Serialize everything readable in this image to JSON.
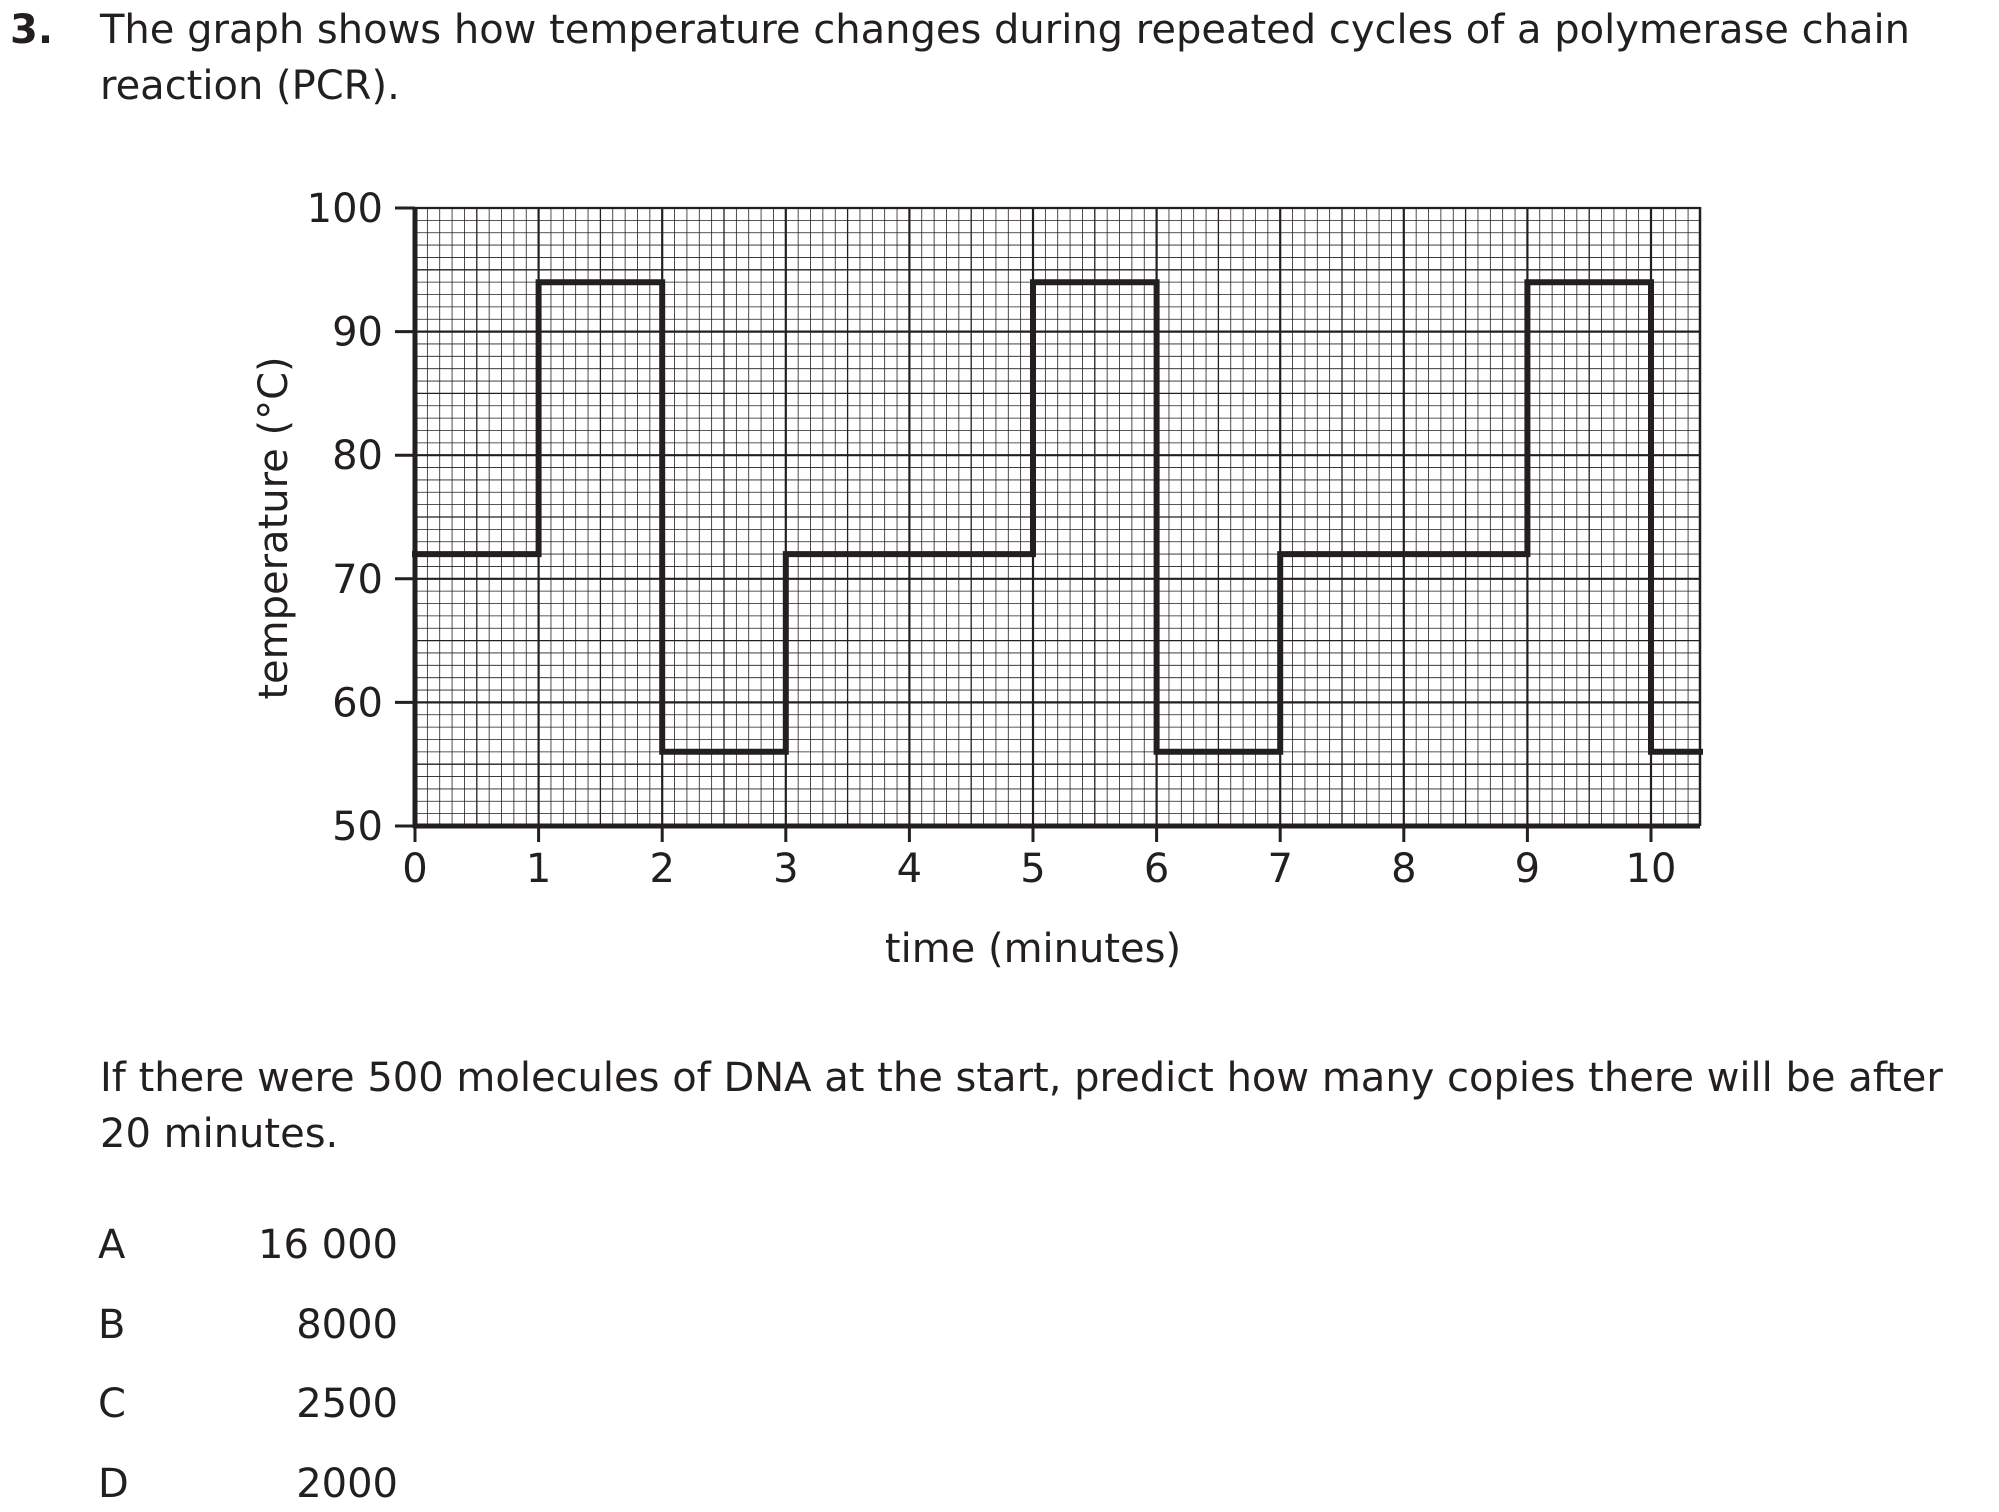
{
  "question": {
    "number": "3.",
    "stem": "The graph shows how temperature changes during repeated cycles of a polymerase chain reaction (PCR).",
    "prompt": "If there were 500 molecules of DNA at the start, predict how many copies there will be after 20 minutes.",
    "options": [
      {
        "letter": "A",
        "value": "16 000"
      },
      {
        "letter": "B",
        "value": "8000"
      },
      {
        "letter": "C",
        "value": "2500"
      },
      {
        "letter": "D",
        "value": "2000"
      }
    ]
  },
  "chart_data": {
    "type": "line",
    "step": true,
    "title": "",
    "xlabel": "time (minutes)",
    "ylabel": "temperature (°C)",
    "xlim": [
      0,
      10.4
    ],
    "ylim": [
      50,
      100
    ],
    "xticks": [
      0,
      1,
      2,
      3,
      4,
      5,
      6,
      7,
      8,
      9,
      10
    ],
    "yticks": [
      50,
      60,
      70,
      80,
      90,
      100
    ],
    "grid": true,
    "series": [
      {
        "x": [
          0,
          1,
          1,
          2,
          2,
          3,
          3,
          5,
          5,
          6,
          6,
          7,
          7,
          9,
          9,
          10,
          10,
          10.4
        ],
        "y": [
          72,
          72,
          94,
          94,
          56,
          56,
          72,
          72,
          94,
          94,
          56,
          56,
          72,
          72,
          94,
          94,
          56,
          56
        ]
      }
    ]
  }
}
